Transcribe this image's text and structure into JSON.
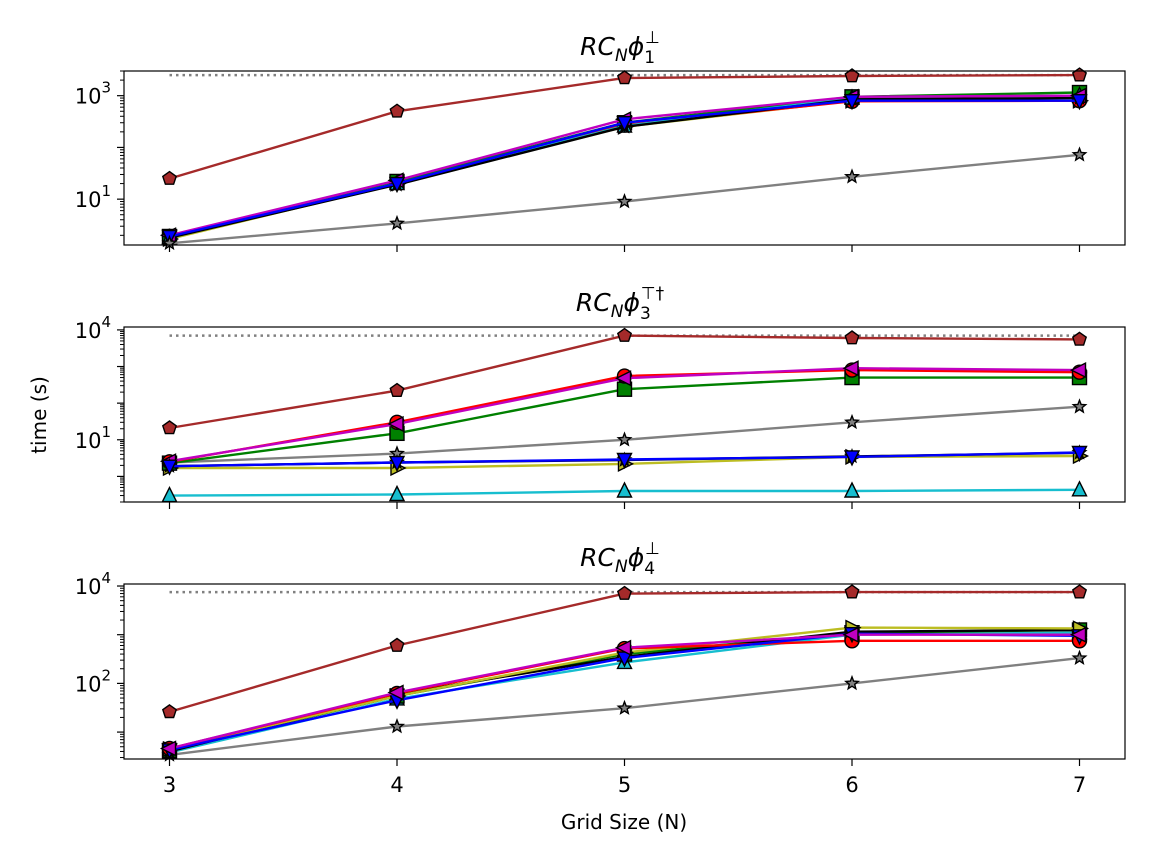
{
  "figure": {
    "xlabel": "Grid Size (N)",
    "ylabel": "time (s)"
  },
  "chart_data": [
    {
      "type": "line",
      "title": {
        "main": "RC",
        "sub": "N",
        "phi": "ϕ",
        "sup": "⊥",
        "idx": "1"
      },
      "scale": "log",
      "x": [
        3,
        4,
        5,
        6,
        7
      ],
      "xlim": [
        2.8,
        7.2
      ],
      "ylim": [
        1.3,
        3000
      ],
      "yticks": [
        {
          "value": 10,
          "base": "10",
          "exp": "1"
        },
        {
          "value": 1000,
          "base": "10",
          "exp": "3"
        }
      ],
      "reference_line": {
        "value": 2500,
        "color": "#808080",
        "style": "dotted"
      },
      "series": [
        {
          "name": "yellow",
          "color": "#bcbd22",
          "marker": "triangle-right",
          "values": [
            1.7,
            20,
            250,
            800,
            800
          ]
        },
        {
          "name": "red",
          "color": "#ff0000",
          "marker": "circle",
          "values": [
            1.9,
            21,
            270,
            780,
            800
          ]
        },
        {
          "name": "green",
          "color": "#008000",
          "marker": "square",
          "values": [
            1.9,
            22,
            300,
            950,
            1150
          ]
        },
        {
          "name": "cyan",
          "color": "#17becf",
          "marker": "triangle-up",
          "values": [
            1.8,
            20,
            260,
            900,
            1000
          ]
        },
        {
          "name": "black",
          "color": "#000000",
          "marker": "star",
          "values": [
            1.8,
            19,
            250,
            850,
            900
          ]
        },
        {
          "name": "magenta",
          "color": "#c000c0",
          "marker": "triangle-left",
          "values": [
            2.0,
            23,
            350,
            950,
            1000
          ]
        },
        {
          "name": "blue",
          "color": "#0000ff",
          "marker": "triangle-down",
          "values": [
            1.9,
            20,
            300,
            800,
            800
          ]
        },
        {
          "name": "grey",
          "color": "#808080",
          "marker": "star",
          "values": [
            1.4,
            3.4,
            9,
            27,
            72
          ]
        },
        {
          "name": "brown",
          "color": "#a52a2a",
          "marker": "pentagon",
          "values": [
            25,
            500,
            2200,
            2400,
            2500
          ]
        }
      ]
    },
    {
      "type": "line",
      "title": {
        "main": "RC",
        "sub": "N",
        "phi": "ϕ",
        "sup": "⊤†",
        "idx": "3"
      },
      "scale": "log",
      "x": [
        3,
        4,
        5,
        6,
        7
      ],
      "xlim": [
        2.8,
        7.2
      ],
      "ylim": [
        0.2,
        12000
      ],
      "yticks": [
        {
          "value": 10,
          "base": "10",
          "exp": "1"
        },
        {
          "value": 10000,
          "base": "10",
          "exp": "4"
        }
      ],
      "reference_line": {
        "value": 7000,
        "color": "#808080",
        "style": "dotted"
      },
      "series": [
        {
          "name": "cyan",
          "color": "#17becf",
          "marker": "triangle-up",
          "values": [
            0.3,
            0.32,
            0.4,
            0.4,
            0.43
          ]
        },
        {
          "name": "yellow",
          "color": "#bcbd22",
          "marker": "triangle-right",
          "values": [
            1.7,
            1.7,
            2.2,
            3.4,
            3.6
          ]
        },
        {
          "name": "grey",
          "color": "#808080",
          "marker": "star",
          "values": [
            2.4,
            4.2,
            10,
            30,
            80
          ]
        },
        {
          "name": "green",
          "color": "#008000",
          "marker": "square",
          "values": [
            2.3,
            15,
            240,
            500,
            500
          ]
        },
        {
          "name": "red",
          "color": "#ff0000",
          "marker": "circle",
          "values": [
            2.5,
            30,
            550,
            800,
            700
          ]
        },
        {
          "name": "magenta",
          "color": "#c000c0",
          "marker": "triangle-left",
          "values": [
            2.6,
            27,
            480,
            900,
            800
          ]
        },
        {
          "name": "black",
          "color": "#000000",
          "marker": "star",
          "values": [
            1.9,
            2.4,
            2.8,
            3.5,
            4.4
          ]
        },
        {
          "name": "blue",
          "color": "#0000ff",
          "marker": "triangle-down",
          "values": [
            1.9,
            2.4,
            2.9,
            3.4,
            4.5
          ]
        },
        {
          "name": "brown",
          "color": "#a52a2a",
          "marker": "pentagon",
          "values": [
            21,
            220,
            7000,
            6000,
            5500
          ]
        }
      ]
    },
    {
      "type": "line",
      "title": {
        "main": "RC",
        "sub": "N",
        "phi": "ϕ",
        "sup": "⊥",
        "idx": "4"
      },
      "scale": "log",
      "x": [
        3,
        4,
        5,
        6,
        7
      ],
      "xlim": [
        2.8,
        7.2
      ],
      "ylim": [
        2.8,
        11000
      ],
      "yticks": [
        {
          "value": 100,
          "base": "10",
          "exp": "2"
        },
        {
          "value": 10000,
          "base": "10",
          "exp": "4"
        }
      ],
      "reference_line": {
        "value": 7500,
        "color": "#808080",
        "style": "dotted"
      },
      "series": [
        {
          "name": "grey",
          "color": "#808080",
          "marker": "star",
          "values": [
            3.4,
            13,
            31,
            100,
            330
          ]
        },
        {
          "name": "cyan",
          "color": "#17becf",
          "marker": "triangle-up",
          "values": [
            3.8,
            48,
            270,
            1000,
            1100
          ]
        },
        {
          "name": "green",
          "color": "#008000",
          "marker": "square",
          "values": [
            4.2,
            55,
            400,
            1100,
            1250
          ]
        },
        {
          "name": "black",
          "color": "#000000",
          "marker": "star",
          "values": [
            4.0,
            60,
            350,
            1150,
            1250
          ]
        },
        {
          "name": "yellow",
          "color": "#bcbd22",
          "marker": "triangle-right",
          "values": [
            4.5,
            55,
            430,
            1400,
            1350
          ]
        },
        {
          "name": "red",
          "color": "#ff0000",
          "marker": "circle",
          "values": [
            4.6,
            62,
            520,
            750,
            750
          ]
        },
        {
          "name": "blue",
          "color": "#0000ff",
          "marker": "triangle-down",
          "values": [
            4.3,
            45,
            330,
            1050,
            950
          ]
        },
        {
          "name": "magenta",
          "color": "#c000c0",
          "marker": "triangle-left",
          "values": [
            4.6,
            65,
            540,
            1000,
            1000
          ]
        },
        {
          "name": "brown",
          "color": "#a52a2a",
          "marker": "pentagon",
          "values": [
            26,
            600,
            7000,
            7500,
            7500
          ]
        }
      ]
    }
  ]
}
